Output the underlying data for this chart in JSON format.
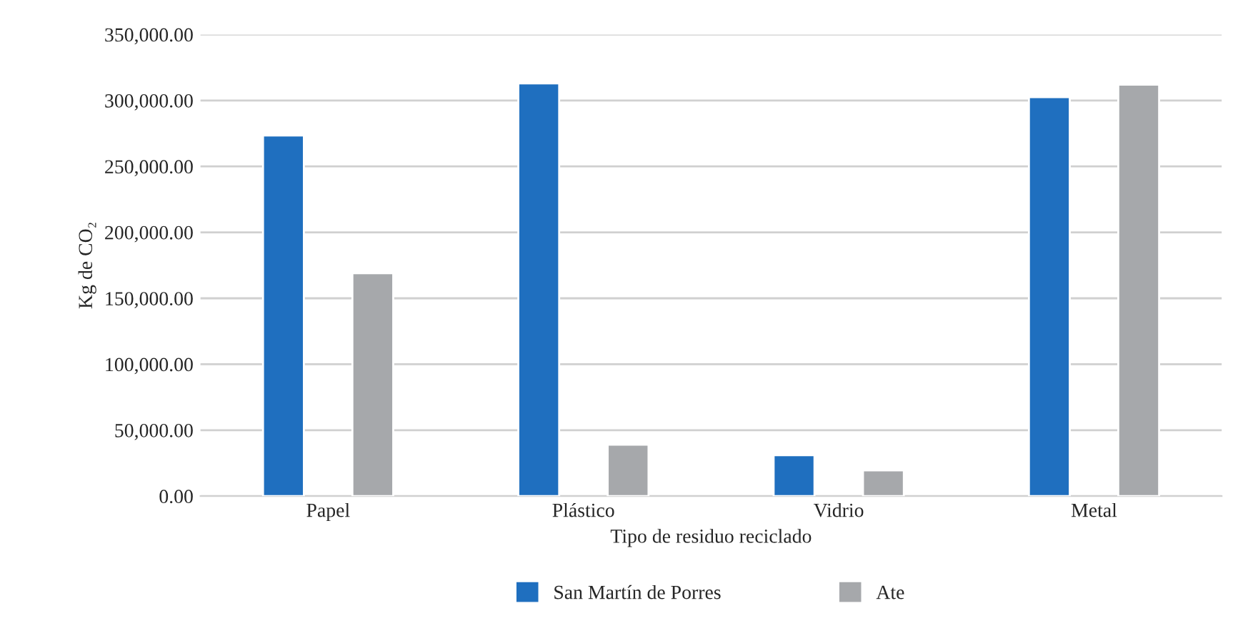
{
  "chart_data": {
    "type": "bar",
    "xlabel": "Tipo de residuo reciclado",
    "ylabel": "Kg de CO₂",
    "categories": [
      "Papel",
      "Plástico",
      "Vidrio",
      "Metal"
    ],
    "series": [
      {
        "name": "San Martín de Porres",
        "color": "#1f6fbf",
        "values": [
          273500,
          313000,
          31000,
          302500
        ]
      },
      {
        "name": "Ate",
        "color": "#a6a8ab",
        "values": [
          169000,
          39000,
          19500,
          312000
        ]
      }
    ],
    "ylim": [
      0,
      350000
    ],
    "yticks": [
      {
        "value": 0,
        "label": "0.00"
      },
      {
        "value": 50000,
        "label": "50,000.00"
      },
      {
        "value": 100000,
        "label": "100,000.00"
      },
      {
        "value": 150000,
        "label": "150,000.00"
      },
      {
        "value": 200000,
        "label": "200,000.00"
      },
      {
        "value": 250000,
        "label": "250,000.00"
      },
      {
        "value": 300000,
        "label": "300,000.00"
      },
      {
        "value": 350000,
        "label": "350,000.00"
      }
    ],
    "grid": "y",
    "legend": "bottom"
  }
}
